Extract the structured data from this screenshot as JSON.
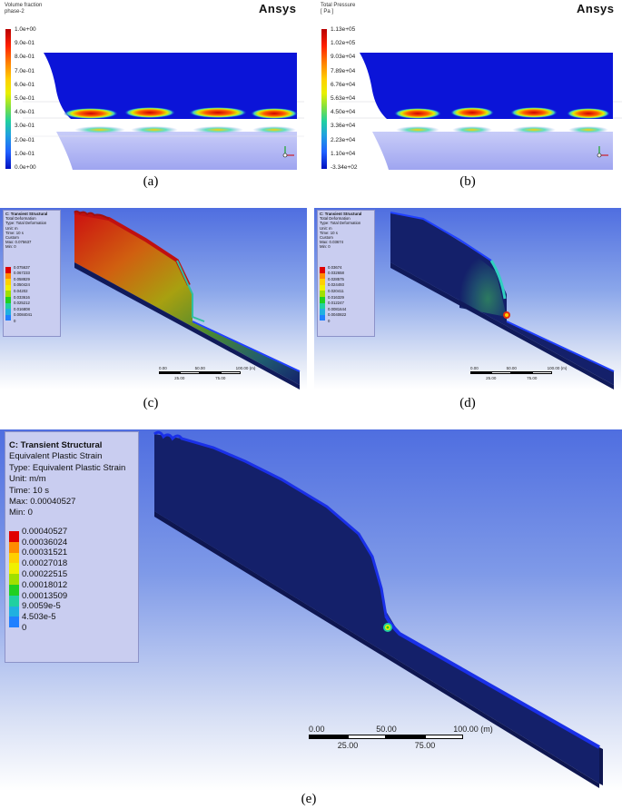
{
  "captions": [
    "(a)",
    "(b)",
    "(c)",
    "(d)",
    "(e)"
  ],
  "panel_a": {
    "title_line1": "Volume fraction",
    "title_line2": "phase-2",
    "brand": "Ansys",
    "colorbar_labels": [
      "1.0e+00",
      "9.0e-01",
      "8.0e-01",
      "7.0e-01",
      "6.0e-01",
      "5.0e-01",
      "4.0e-01",
      "3.0e-01",
      "2.0e-01",
      "1.0e-01",
      "0.0e+00"
    ]
  },
  "panel_b": {
    "title_line1": "Total Pressure",
    "title_line2": "[ Pa ]",
    "brand": "Ansys",
    "colorbar_labels": [
      "1.13e+05",
      "1.02e+05",
      "9.03e+04",
      "7.89e+04",
      "6.76e+04",
      "5.63e+04",
      "4.50e+04",
      "3.36e+04",
      "2.23e+04",
      "1.10e+04",
      "-3.34e+02"
    ]
  },
  "panel_c": {
    "legend": [
      "C: Transient Structural",
      "Total Deformation",
      "Type: Total Deformation",
      "Unit: m",
      "Time: 10 s",
      "Custom",
      "Max: 0.075637",
      "Min: 0"
    ],
    "values": [
      "0.075637",
      "0.067233",
      "0.058829",
      "0.050424",
      "0.04202",
      "0.033616",
      "0.025212",
      "0.016808",
      "0.0084041",
      "0"
    ],
    "scale": {
      "top": [
        "0.00",
        "50.00",
        "100.00 (m)"
      ],
      "bottom": [
        "25.00",
        "75.00"
      ]
    }
  },
  "panel_d": {
    "legend": [
      "C: Transient Structural",
      "Total Deformation",
      "Type: Total Deformation",
      "Unit: m",
      "Time: 10 s",
      "Custom",
      "Max: 0.03674",
      "Min: 0"
    ],
    "values": [
      "0.03674",
      "0.032658",
      "0.028575",
      "0.024493",
      "0.020411",
      "0.016329",
      "0.012247",
      "0.0081644",
      "0.0040822",
      "0"
    ],
    "scale": {
      "top": [
        "0.00",
        "50.00",
        "100.00 (m)"
      ],
      "bottom": [
        "25.00",
        "75.00"
      ]
    }
  },
  "panel_e": {
    "legend": [
      "C: Transient Structural",
      "Equivalent Plastic Strain",
      "Type: Equivalent Plastic Strain",
      "Unit: m/m",
      "Time: 10 s",
      "Max: 0.00040527",
      "Min: 0"
    ],
    "values": [
      "0.00040527",
      "0.00036024",
      "0.00031521",
      "0.00027018",
      "0.00022515",
      "0.00018012",
      "0.00013509",
      "9.0059e-5",
      "4.503e-5",
      "0"
    ],
    "scale": {
      "top": [
        "0.00",
        "50.00",
        "100.00 (m)"
      ],
      "bottom": [
        "25.00",
        "75.00"
      ]
    }
  },
  "colors": {
    "scale": [
      "#e00000",
      "#ff8c00",
      "#ffd000",
      "#f0f000",
      "#a0e000",
      "#20d020",
      "#20d0a0",
      "#20b0e0",
      "#2080ff",
      "#0010e0"
    ],
    "cfd_scale": [
      "#c00000",
      "#ff2000",
      "#ff8000",
      "#ffd000",
      "#e0f000",
      "#80e040",
      "#20d0a0",
      "#20a0e0",
      "#2060ff",
      "#0010c0"
    ],
    "navy": "#14206a",
    "blue": "#0b1bcc"
  }
}
